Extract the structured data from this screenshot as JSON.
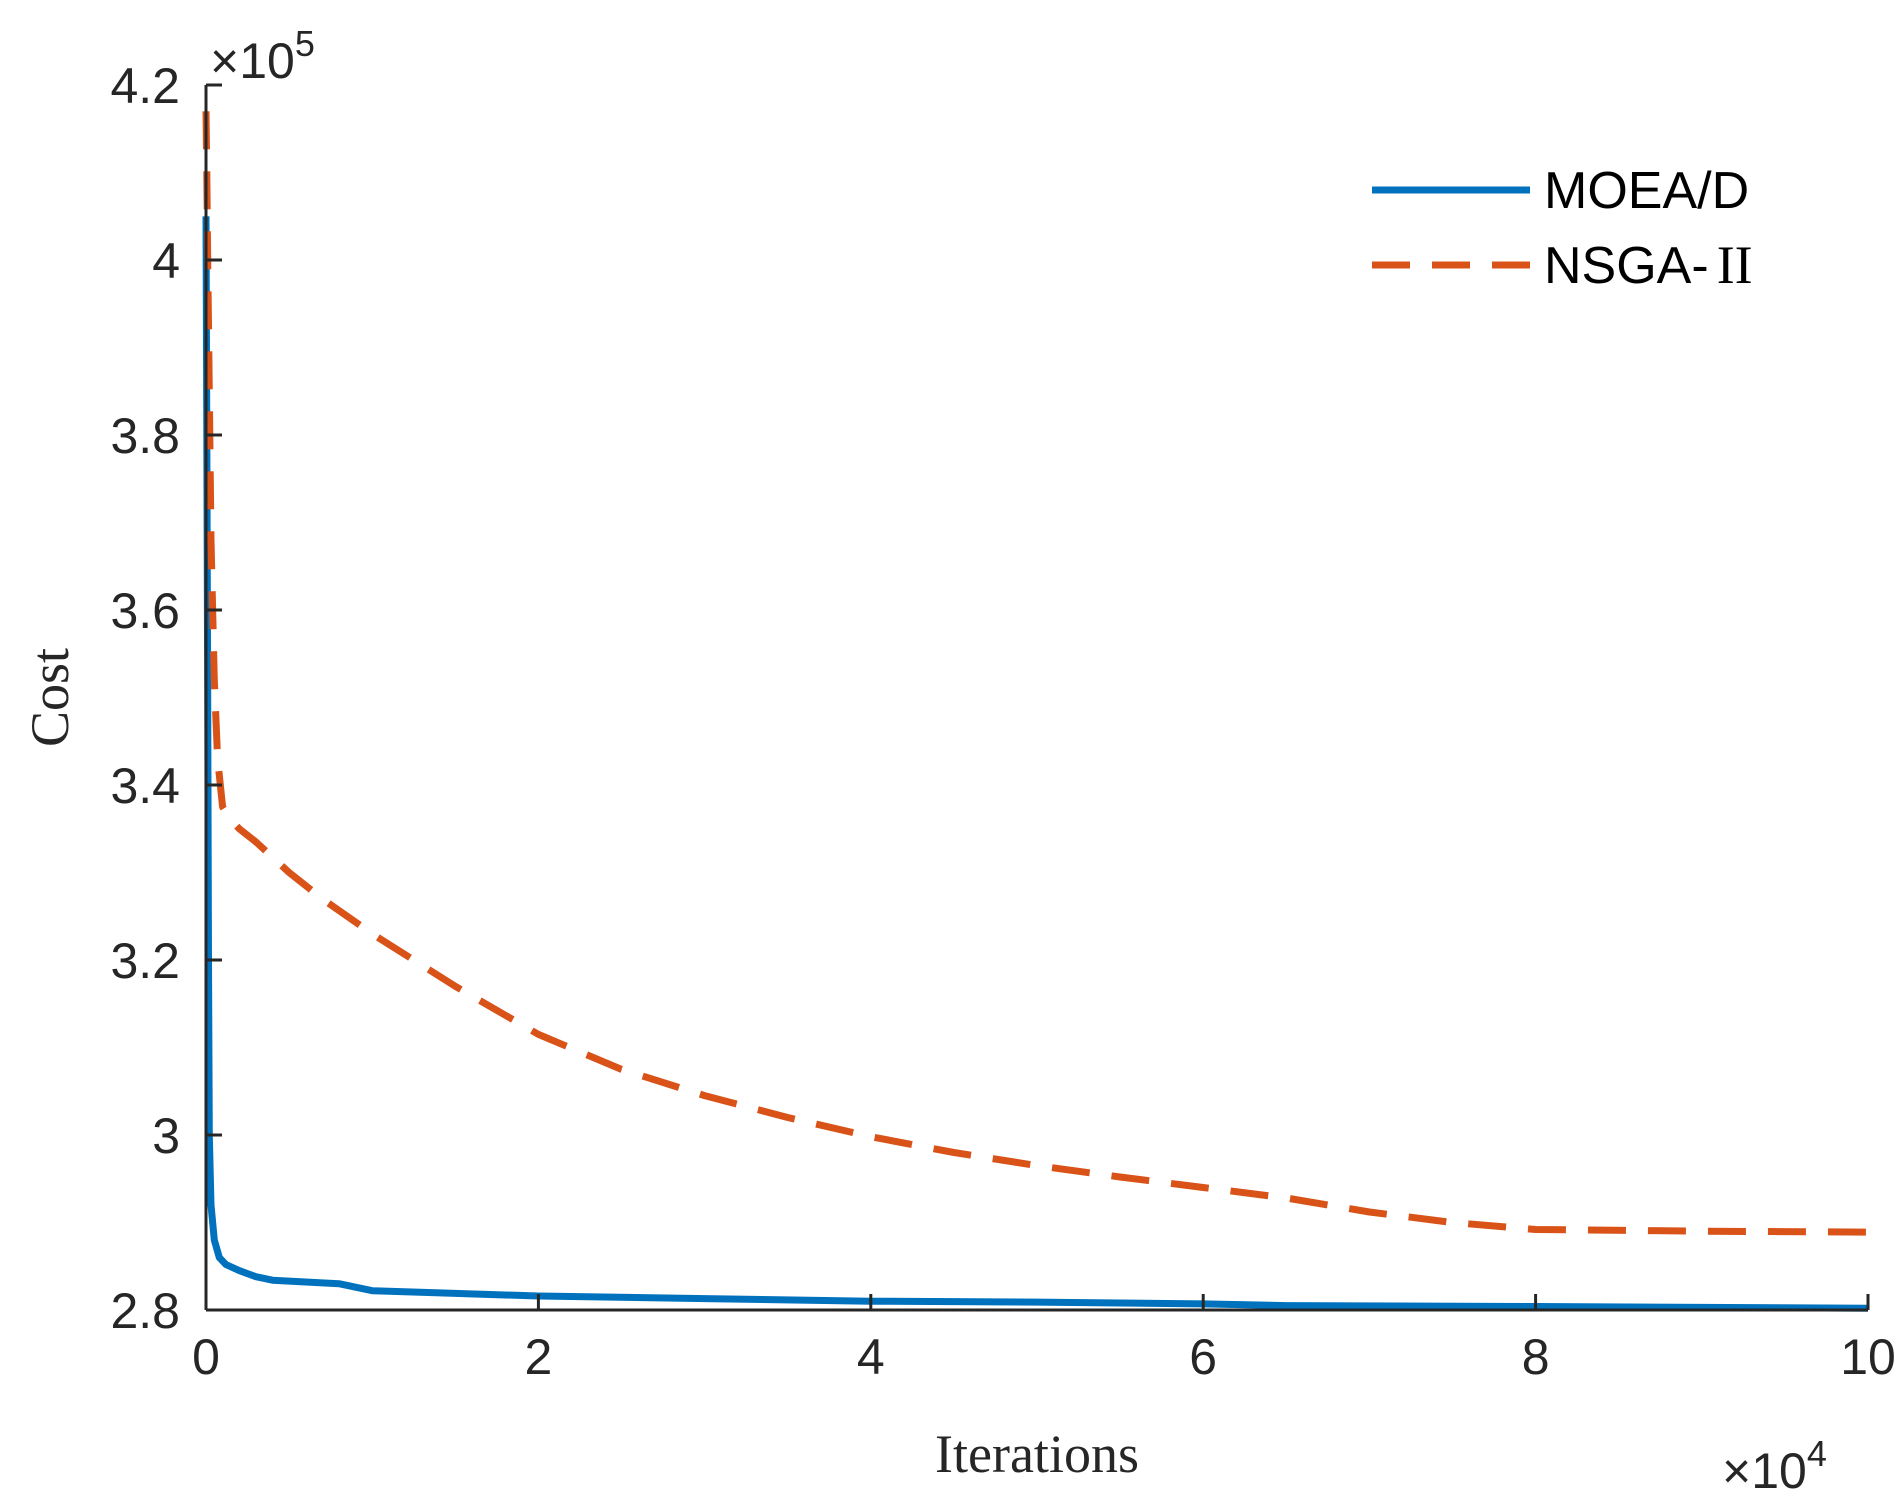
{
  "chart_data": {
    "type": "line",
    "title": "",
    "xlabel": "Iterations",
    "ylabel": "Cost",
    "x_exponent": "4",
    "y_exponent": "5",
    "exponent_base": "10",
    "exponent_prefix": "×",
    "xlim": [
      0,
      10
    ],
    "ylim": [
      2.8,
      4.2
    ],
    "xticks": [
      0,
      2,
      4,
      6,
      8,
      10
    ],
    "xtick_labels": [
      "0",
      "2",
      "4",
      "6",
      "8",
      "10"
    ],
    "yticks": [
      2.8,
      3.0,
      3.2,
      3.4,
      3.6,
      3.8,
      4.0,
      4.2
    ],
    "ytick_labels": [
      "2.8",
      "3",
      "3.2",
      "3.4",
      "3.6",
      "3.8",
      "4",
      "4.2"
    ],
    "grid": false,
    "legend_position": "top-right",
    "series": [
      {
        "name": "MOEA/D",
        "legend_sans": "MOEA/D",
        "legend_serif": "",
        "color": "#0072BD",
        "style": "solid",
        "x": [
          0,
          0.005,
          0.01,
          0.015,
          0.02,
          0.03,
          0.05,
          0.08,
          0.12,
          0.2,
          0.3,
          0.4,
          0.6,
          0.8,
          1.0,
          1.5,
          2.0,
          3.0,
          4.0,
          5.0,
          6.0,
          6.5,
          8.0,
          10.0
        ],
        "values": [
          4.05,
          3.8,
          3.5,
          3.2,
          3.0,
          2.92,
          2.88,
          2.86,
          2.852,
          2.845,
          2.838,
          2.834,
          2.832,
          2.83,
          2.822,
          2.819,
          2.816,
          2.813,
          2.81,
          2.809,
          2.807,
          2.805,
          2.804,
          2.802
        ]
      },
      {
        "name": "NSGA-II",
        "legend_sans": "NSGA-",
        "legend_serif": "II",
        "color": "#D95319",
        "style": "dashed",
        "x": [
          0,
          0.005,
          0.01,
          0.02,
          0.03,
          0.05,
          0.07,
          0.1,
          0.15,
          0.2,
          0.3,
          0.5,
          0.7,
          1.0,
          1.5,
          2.0,
          2.5,
          3.0,
          3.5,
          4.0,
          4.5,
          5.0,
          5.5,
          6.0,
          6.5,
          7.0,
          7.5,
          8.0,
          9.0,
          10.0
        ],
        "values": [
          4.17,
          4.1,
          4.0,
          3.85,
          3.68,
          3.52,
          3.43,
          3.375,
          3.36,
          3.35,
          3.335,
          3.3,
          3.27,
          3.23,
          3.17,
          3.115,
          3.075,
          3.045,
          3.02,
          2.998,
          2.98,
          2.965,
          2.952,
          2.94,
          2.928,
          2.912,
          2.9,
          2.892,
          2.89,
          2.889
        ]
      }
    ]
  }
}
